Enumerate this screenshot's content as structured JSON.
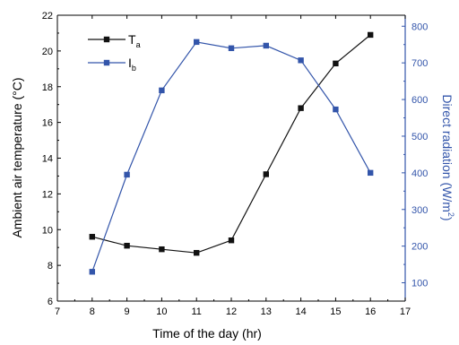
{
  "chart_data": {
    "type": "line",
    "xlabel": "Time of the day (hr)",
    "ylabel_left": "Ambient air temperature (°C)",
    "ylabel_right": {
      "main": "Direct radiation (W/m",
      "sup": "2",
      "end": ")"
    },
    "xlim": [
      7,
      17
    ],
    "ylim_left": [
      6,
      22
    ],
    "ylim_right": [
      50,
      830
    ],
    "x_ticks": [
      "7",
      "8",
      "9",
      "10",
      "11",
      "12",
      "13",
      "14",
      "15",
      "16",
      "17"
    ],
    "y_left_ticks": [
      "6",
      "8",
      "10",
      "12",
      "14",
      "16",
      "18",
      "20",
      "22"
    ],
    "y_right_ticks": [
      "100",
      "200",
      "300",
      "400",
      "500",
      "600",
      "700",
      "800"
    ],
    "grid": false,
    "legend_position": "top-left",
    "series": [
      {
        "name": "Ta",
        "legend_main": "T",
        "legend_sub": "a",
        "axis": "left",
        "color": "#111111",
        "x": [
          8,
          9,
          10,
          11,
          12,
          13,
          14,
          15,
          16
        ],
        "y": [
          9.6,
          9.1,
          8.9,
          8.7,
          9.4,
          13.1,
          16.8,
          19.3,
          20.9
        ]
      },
      {
        "name": "Ib",
        "legend_main": "I",
        "legend_sub": "b",
        "axis": "right",
        "color": "#3355aa",
        "x": [
          8,
          9,
          10,
          11,
          12,
          13,
          14,
          15,
          16
        ],
        "y": [
          130,
          395,
          625,
          757,
          740,
          747,
          707,
          573,
          400
        ]
      }
    ],
    "colors": {
      "axis_left": "#000000",
      "axis_right": "#3355aa"
    }
  }
}
